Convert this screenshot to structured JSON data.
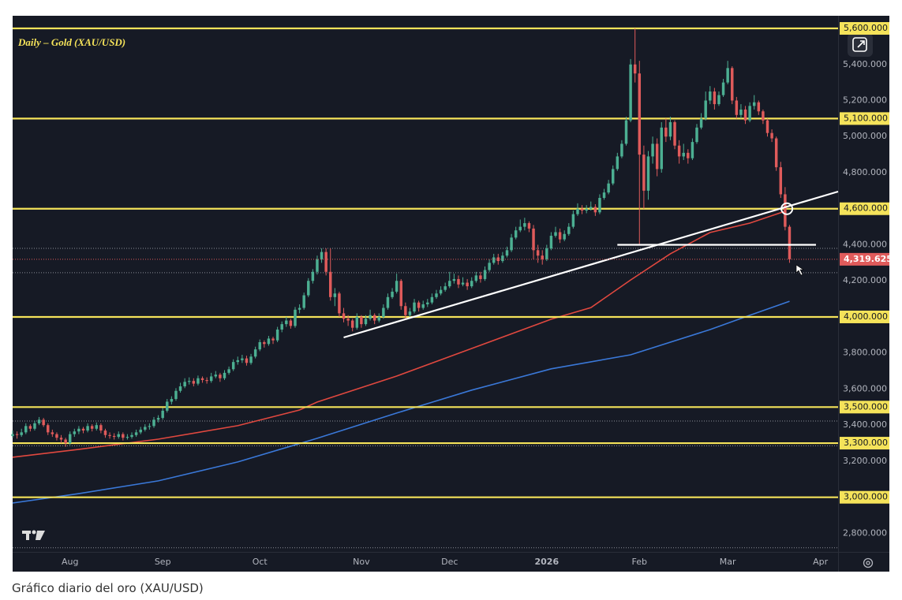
{
  "chart_data": {
    "type": "candlestick",
    "title": "Daily – Gold (XAU/USD)",
    "up_color": "#4caf92",
    "down_color": "#e05b5b",
    "xlim": [
      0,
      187
    ],
    "xticks": [
      {
        "value": 13,
        "label": "Aug"
      },
      {
        "value": 34,
        "label": "Sep"
      },
      {
        "value": 56,
        "label": "Oct"
      },
      {
        "value": 79,
        "label": "Nov"
      },
      {
        "value": 99,
        "label": "Dec"
      },
      {
        "value": 121,
        "label": "2026"
      },
      {
        "value": 142,
        "label": "Feb"
      },
      {
        "value": 162,
        "label": "Mar"
      },
      {
        "value": 183,
        "label": "Apr"
      }
    ],
    "ylim": [
      2697,
      5670
    ],
    "yticks": [
      {
        "value": 2800,
        "label": "2,800.000"
      },
      {
        "value": 3200,
        "label": "3,200.000"
      },
      {
        "value": 3400,
        "label": "3,400.000"
      },
      {
        "value": 3600,
        "label": "3,600.000"
      },
      {
        "value": 3800,
        "label": "3,800.000"
      },
      {
        "value": 4200,
        "label": "4,200.000"
      },
      {
        "value": 4400,
        "label": "4,400.000"
      },
      {
        "value": 4800,
        "label": "4,800.000"
      },
      {
        "value": 5000,
        "label": "5,000.000"
      },
      {
        "value": 5200,
        "label": "5,200.000"
      },
      {
        "value": 5400,
        "label": "5,400.000"
      }
    ],
    "grid": false,
    "levels": [
      {
        "value": 5600,
        "label": "5,600.000"
      },
      {
        "value": 5100,
        "label": "5,100.000"
      },
      {
        "value": 4600,
        "label": "4,600.000"
      },
      {
        "value": 4000,
        "label": "4,000.000"
      },
      {
        "value": 3500,
        "label": "3,500.000"
      },
      {
        "value": 3300,
        "label": "3,300.000"
      },
      {
        "value": 3000,
        "label": "3,000.000"
      }
    ],
    "level_color": "#f5e35a",
    "dotted_levels": [
      4380,
      4245,
      3423,
      3285,
      2720
    ],
    "last_price": {
      "value": 4319.625,
      "label": "4,319.625"
    },
    "series": [
      {
        "color": "#e0483f",
        "x": [
          0,
          15,
          33,
          51,
          65,
          69,
          87,
          104,
          122,
          131,
          140,
          149,
          158,
          167,
          175
        ],
        "values": [
          3222,
          3266,
          3322,
          3397,
          3484,
          3528,
          3672,
          3825,
          3987,
          4052,
          4205,
          4350,
          4468,
          4520,
          4586
        ]
      },
      {
        "color": "#3a78d8",
        "x": [
          0,
          15,
          33,
          51,
          69,
          87,
          104,
          122,
          140,
          158,
          167,
          176
        ],
        "values": [
          2968,
          3020,
          3091,
          3196,
          3327,
          3467,
          3594,
          3712,
          3790,
          3930,
          4009,
          4087
        ]
      }
    ],
    "trend_lines": [
      {
        "color": "#ffffff",
        "x": [
          75,
          187
        ],
        "values": [
          3886,
          4695
        ]
      },
      {
        "color": "#ffffff",
        "x": [
          137,
          182
        ],
        "values": [
          4400,
          4400
        ]
      }
    ],
    "marker": {
      "x": 175.4,
      "value": 4600
    },
    "candles": [
      [
        3340,
        3370,
        3330,
        3350
      ],
      [
        3350,
        3365,
        3325,
        3345
      ],
      [
        3345,
        3380,
        3335,
        3360
      ],
      [
        3360,
        3410,
        3350,
        3395
      ],
      [
        3395,
        3405,
        3365,
        3380
      ],
      [
        3380,
        3425,
        3370,
        3410
      ],
      [
        3410,
        3445,
        3400,
        3430
      ],
      [
        3430,
        3440,
        3390,
        3400
      ],
      [
        3400,
        3410,
        3345,
        3360
      ],
      [
        3360,
        3375,
        3335,
        3350
      ],
      [
        3350,
        3360,
        3315,
        3330
      ],
      [
        3330,
        3345,
        3300,
        3320
      ],
      [
        3320,
        3330,
        3280,
        3300
      ],
      [
        3300,
        3365,
        3290,
        3350
      ],
      [
        3350,
        3380,
        3335,
        3365
      ],
      [
        3365,
        3395,
        3350,
        3380
      ],
      [
        3380,
        3390,
        3355,
        3370
      ],
      [
        3370,
        3410,
        3360,
        3395
      ],
      [
        3395,
        3405,
        3365,
        3380
      ],
      [
        3380,
        3415,
        3370,
        3400
      ],
      [
        3400,
        3410,
        3355,
        3370
      ],
      [
        3370,
        3380,
        3330,
        3345
      ],
      [
        3345,
        3360,
        3325,
        3340
      ],
      [
        3340,
        3355,
        3320,
        3335
      ],
      [
        3335,
        3365,
        3325,
        3350
      ],
      [
        3350,
        3360,
        3315,
        3330
      ],
      [
        3330,
        3350,
        3320,
        3335
      ],
      [
        3335,
        3360,
        3325,
        3345
      ],
      [
        3345,
        3375,
        3335,
        3360
      ],
      [
        3360,
        3390,
        3350,
        3375
      ],
      [
        3375,
        3405,
        3365,
        3390
      ],
      [
        3390,
        3410,
        3375,
        3395
      ],
      [
        3395,
        3445,
        3385,
        3430
      ],
      [
        3430,
        3455,
        3415,
        3440
      ],
      [
        3440,
        3495,
        3430,
        3480
      ],
      [
        3480,
        3545,
        3470,
        3530
      ],
      [
        3530,
        3560,
        3515,
        3545
      ],
      [
        3545,
        3605,
        3535,
        3590
      ],
      [
        3590,
        3635,
        3580,
        3615
      ],
      [
        3615,
        3660,
        3605,
        3640
      ],
      [
        3640,
        3665,
        3625,
        3645
      ],
      [
        3645,
        3660,
        3615,
        3630
      ],
      [
        3630,
        3675,
        3620,
        3660
      ],
      [
        3660,
        3670,
        3635,
        3650
      ],
      [
        3650,
        3665,
        3630,
        3645
      ],
      [
        3645,
        3690,
        3635,
        3670
      ],
      [
        3670,
        3700,
        3660,
        3680
      ],
      [
        3680,
        3690,
        3640,
        3660
      ],
      [
        3660,
        3705,
        3650,
        3690
      ],
      [
        3690,
        3725,
        3680,
        3710
      ],
      [
        3710,
        3765,
        3700,
        3750
      ],
      [
        3750,
        3780,
        3735,
        3760
      ],
      [
        3760,
        3790,
        3745,
        3770
      ],
      [
        3770,
        3785,
        3730,
        3745
      ],
      [
        3745,
        3795,
        3735,
        3780
      ],
      [
        3780,
        3835,
        3770,
        3820
      ],
      [
        3820,
        3875,
        3810,
        3860
      ],
      [
        3860,
        3870,
        3830,
        3850
      ],
      [
        3850,
        3895,
        3840,
        3880
      ],
      [
        3880,
        3890,
        3850,
        3870
      ],
      [
        3870,
        3945,
        3860,
        3930
      ],
      [
        3930,
        3975,
        3915,
        3960
      ],
      [
        3960,
        4000,
        3945,
        3980
      ],
      [
        3980,
        3990,
        3935,
        3950
      ],
      [
        3950,
        4055,
        3940,
        4040
      ],
      [
        4040,
        4070,
        4020,
        4050
      ],
      [
        4050,
        4135,
        4040,
        4120
      ],
      [
        4120,
        4215,
        4110,
        4200
      ],
      [
        4200,
        4265,
        4185,
        4250
      ],
      [
        4250,
        4340,
        4235,
        4320
      ],
      [
        4320,
        4380,
        4300,
        4360
      ],
      [
        4360,
        4380,
        4230,
        4250
      ],
      [
        4250,
        4380,
        4090,
        4110
      ],
      [
        4110,
        4160,
        4060,
        4130
      ],
      [
        4130,
        4140,
        4000,
        4020
      ],
      [
        4020,
        4050,
        3970,
        3990
      ],
      [
        3990,
        4010,
        3950,
        3980
      ],
      [
        3980,
        3990,
        3920,
        3940
      ],
      [
        3940,
        4020,
        3930,
        4000
      ],
      [
        4000,
        4010,
        3940,
        3960
      ],
      [
        3960,
        4010,
        3950,
        3990
      ],
      [
        3990,
        4040,
        3980,
        4010
      ],
      [
        4010,
        4020,
        3960,
        3980
      ],
      [
        3980,
        4020,
        3970,
        4000
      ],
      [
        4000,
        4070,
        3990,
        4050
      ],
      [
        4050,
        4130,
        4040,
        4110
      ],
      [
        4110,
        4160,
        4100,
        4140
      ],
      [
        4140,
        4240,
        4130,
        4200
      ],
      [
        4200,
        4210,
        4040,
        4060
      ],
      [
        4060,
        4080,
        3990,
        4010
      ],
      [
        4010,
        4050,
        3995,
        4030
      ],
      [
        4030,
        4100,
        4020,
        4080
      ],
      [
        4080,
        4090,
        4030,
        4050
      ],
      [
        4050,
        4090,
        4040,
        4070
      ],
      [
        4070,
        4100,
        4055,
        4080
      ],
      [
        4080,
        4130,
        4070,
        4110
      ],
      [
        4110,
        4150,
        4100,
        4130
      ],
      [
        4130,
        4170,
        4120,
        4150
      ],
      [
        4150,
        4190,
        4140,
        4170
      ],
      [
        4170,
        4250,
        4160,
        4200
      ],
      [
        4200,
        4240,
        4185,
        4210
      ],
      [
        4210,
        4230,
        4160,
        4180
      ],
      [
        4180,
        4220,
        4170,
        4190
      ],
      [
        4190,
        4210,
        4150,
        4170
      ],
      [
        4170,
        4220,
        4160,
        4200
      ],
      [
        4200,
        4250,
        4190,
        4230
      ],
      [
        4230,
        4250,
        4190,
        4210
      ],
      [
        4210,
        4280,
        4200,
        4260
      ],
      [
        4260,
        4320,
        4250,
        4300
      ],
      [
        4300,
        4350,
        4290,
        4330
      ],
      [
        4330,
        4350,
        4290,
        4310
      ],
      [
        4310,
        4360,
        4300,
        4340
      ],
      [
        4340,
        4390,
        4330,
        4370
      ],
      [
        4370,
        4460,
        4360,
        4440
      ],
      [
        4440,
        4500,
        4430,
        4480
      ],
      [
        4480,
        4540,
        4470,
        4500
      ],
      [
        4500,
        4550,
        4480,
        4520
      ],
      [
        4520,
        4530,
        4470,
        4490
      ],
      [
        4490,
        4510,
        4320,
        4370
      ],
      [
        4370,
        4400,
        4300,
        4340
      ],
      [
        4340,
        4370,
        4290,
        4320
      ],
      [
        4320,
        4400,
        4310,
        4380
      ],
      [
        4380,
        4470,
        4370,
        4450
      ],
      [
        4450,
        4500,
        4440,
        4470
      ],
      [
        4470,
        4490,
        4410,
        4430
      ],
      [
        4430,
        4480,
        4420,
        4460
      ],
      [
        4460,
        4520,
        4450,
        4500
      ],
      [
        4500,
        4590,
        4490,
        4570
      ],
      [
        4570,
        4630,
        4560,
        4600
      ],
      [
        4600,
        4620,
        4570,
        4590
      ],
      [
        4590,
        4620,
        4575,
        4600
      ],
      [
        4600,
        4640,
        4590,
        4610
      ],
      [
        4610,
        4625,
        4560,
        4580
      ],
      [
        4580,
        4680,
        4570,
        4660
      ],
      [
        4660,
        4710,
        4650,
        4690
      ],
      [
        4690,
        4760,
        4680,
        4740
      ],
      [
        4740,
        4840,
        4730,
        4820
      ],
      [
        4820,
        4910,
        4810,
        4890
      ],
      [
        4890,
        4980,
        4880,
        4960
      ],
      [
        4960,
        5110,
        4950,
        5090
      ],
      [
        5090,
        5430,
        5080,
        5400
      ],
      [
        5400,
        5600,
        5300,
        5350
      ],
      [
        5350,
        5420,
        4400,
        4900
      ],
      [
        4900,
        4950,
        4600,
        4700
      ],
      [
        4700,
        4920,
        4650,
        4890
      ],
      [
        4890,
        5000,
        4850,
        4960
      ],
      [
        4960,
        4990,
        4780,
        4820
      ],
      [
        4820,
        5080,
        4800,
        5050
      ],
      [
        5050,
        5100,
        4970,
        5000
      ],
      [
        5000,
        5110,
        4980,
        5080
      ],
      [
        5080,
        5090,
        4930,
        4950
      ],
      [
        4950,
        4980,
        4850,
        4890
      ],
      [
        4890,
        4960,
        4870,
        4910
      ],
      [
        4910,
        4930,
        4850,
        4880
      ],
      [
        4880,
        4990,
        4870,
        4970
      ],
      [
        4970,
        5070,
        4960,
        5050
      ],
      [
        5050,
        5130,
        5040,
        5100
      ],
      [
        5100,
        5250,
        5090,
        5200
      ],
      [
        5200,
        5280,
        5180,
        5250
      ],
      [
        5250,
        5270,
        5150,
        5180
      ],
      [
        5180,
        5250,
        5170,
        5230
      ],
      [
        5230,
        5320,
        5220,
        5300
      ],
      [
        5300,
        5420,
        5290,
        5380
      ],
      [
        5380,
        5390,
        5180,
        5200
      ],
      [
        5200,
        5220,
        5100,
        5120
      ],
      [
        5120,
        5180,
        5100,
        5150
      ],
      [
        5150,
        5170,
        5070,
        5090
      ],
      [
        5090,
        5190,
        5080,
        5170
      ],
      [
        5170,
        5230,
        5150,
        5190
      ],
      [
        5190,
        5200,
        5120,
        5140
      ],
      [
        5140,
        5150,
        5070,
        5090
      ],
      [
        5090,
        5100,
        5000,
        5020
      ],
      [
        5020,
        5040,
        4970,
        4990
      ],
      [
        4990,
        5000,
        4810,
        4830
      ],
      [
        4830,
        4860,
        4660,
        4680
      ],
      [
        4680,
        4720,
        4480,
        4500
      ],
      [
        4500,
        4510,
        4300,
        4319.625
      ]
    ]
  },
  "caption": "Gráfico diario del oro (XAU/USD)"
}
